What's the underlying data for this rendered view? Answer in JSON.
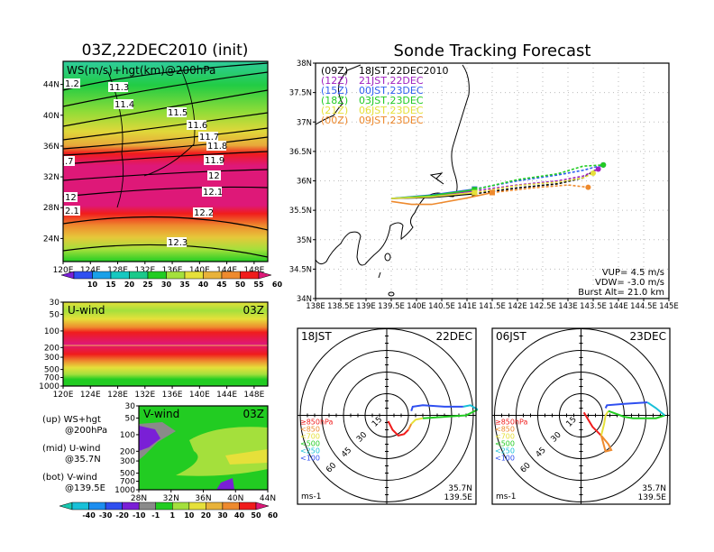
{
  "chart_data": [
    {
      "type": "heatmap",
      "id": "ws-map",
      "title": "03Z,22DEC2010 (init)",
      "label": "WS(m/s)+hgt(km)@200hPa",
      "x_ticks": [
        "120E",
        "124E",
        "128E",
        "132E",
        "136E",
        "140E",
        "144E",
        "148E"
      ],
      "y_ticks": [
        "24N",
        "28N",
        "32N",
        "36N",
        "40N",
        "44N"
      ],
      "xlim": [
        120,
        150
      ],
      "ylim": [
        21,
        47
      ],
      "contour_labels": [
        "1.2",
        "11.3",
        "11.4",
        "11.5",
        "11.6",
        "11.7",
        "11.8",
        ".7",
        "11.9",
        "12",
        "12.1",
        "12",
        "2.1",
        "12.2",
        "12.3"
      ],
      "colorbar": {
        "levels": [
          "10",
          "15",
          "20",
          "25",
          "30",
          "35",
          "40",
          "45",
          "50",
          "55",
          "60"
        ],
        "colors": [
          "#7a1fd6",
          "#2f4ff0",
          "#1aa0e8",
          "#16c8c0",
          "#1bc98a",
          "#22cc22",
          "#a4e03c",
          "#e6e03a",
          "#e8b23a",
          "#ee8a2e",
          "#f01c1c",
          "#de1878"
        ]
      }
    },
    {
      "type": "heatmap",
      "id": "u-wind",
      "label": "U-wind",
      "time": "03Z",
      "x_ticks": [
        "120E",
        "124E",
        "128E",
        "132E",
        "136E",
        "140E",
        "144E",
        "148E"
      ],
      "y_ticks": [
        "30",
        "50",
        "100",
        "200",
        "300",
        "500",
        "700",
        "1000"
      ]
    },
    {
      "type": "heatmap",
      "id": "v-wind",
      "label": "V-wind",
      "time": "03Z",
      "x_ticks": [
        "28N",
        "32N",
        "36N",
        "40N",
        "44N"
      ],
      "y_ticks": [
        "30",
        "50",
        "100",
        "200",
        "300",
        "500",
        "700",
        "1000"
      ],
      "colorbar": {
        "levels": [
          "-40",
          "-30",
          "-20",
          "-10",
          "-1",
          "1",
          "10",
          "20",
          "30",
          "40",
          "50",
          "60"
        ],
        "colors": [
          "#18c8b0",
          "#18c0d8",
          "#1c8ef0",
          "#2f4ff0",
          "#7a1fd6",
          "#8a8a8a",
          "#22cc22",
          "#a4e03c",
          "#e6e03a",
          "#e8b23a",
          "#ee8a2e",
          "#f01c1c",
          "#de1878"
        ]
      }
    },
    {
      "type": "line",
      "id": "sonde-track",
      "title": "Sonde Tracking Forecast",
      "x_ticks": [
        "138E",
        "138.5E",
        "139E",
        "139.5E",
        "140E",
        "140.5E",
        "141E",
        "141.5E",
        "142E",
        "142.5E",
        "143E",
        "143.5E",
        "144E",
        "144.5E",
        "145E"
      ],
      "y_ticks": [
        "34N",
        "34.5N",
        "35N",
        "35.5N",
        "36N",
        "36.5N",
        "37N",
        "37.5N",
        "38N"
      ],
      "xlim": [
        138,
        145
      ],
      "ylim": [
        34,
        38
      ],
      "series": [
        {
          "name": "(09Z) 18JST,22DEC2010",
          "z": "(09Z)",
          "jst": "18JST,22DEC2010",
          "color": "#000000",
          "lon": [
            139.5,
            140.3,
            141.15,
            142.0,
            142.8,
            143.3,
            143.7
          ],
          "lat": [
            35.7,
            35.72,
            35.78,
            35.88,
            35.95,
            36.05,
            36.27
          ]
        },
        {
          "name": "(12Z) 21JST,22DEC",
          "z": "(12Z)",
          "jst": "21JST,22DEC",
          "color": "#a020c0",
          "lon": [
            139.5,
            140.3,
            141.15,
            142.0,
            142.8,
            143.3,
            143.6
          ],
          "lat": [
            35.7,
            35.74,
            35.83,
            35.93,
            36.0,
            36.08,
            36.2
          ]
        },
        {
          "name": "(15Z) 00JST,23DEC",
          "z": "(15Z)",
          "jst": "00JST,23DEC",
          "color": "#2f5ff0",
          "lon": [
            139.5,
            140.3,
            141.15,
            142.0,
            142.8,
            143.3,
            143.7
          ],
          "lat": [
            35.7,
            35.76,
            35.86,
            36.0,
            36.1,
            36.18,
            36.27
          ]
        },
        {
          "name": "(18Z) 03JST,23DEC",
          "z": "(18Z)",
          "jst": "03JST,23DEC",
          "color": "#22cc22",
          "lon": [
            139.5,
            140.3,
            141.15,
            142.0,
            142.8,
            143.3,
            143.7
          ],
          "lat": [
            35.7,
            35.75,
            35.85,
            36.02,
            36.12,
            36.25,
            36.27
          ]
        },
        {
          "name": "(21Z) 06JST,23DEC",
          "z": "(21Z)",
          "jst": "06JST,23DEC",
          "color": "#e6e03a",
          "lon": [
            139.5,
            140.3,
            141.15,
            142.0,
            142.8,
            143.3,
            143.5
          ],
          "lat": [
            35.7,
            35.73,
            35.8,
            35.92,
            35.98,
            36.05,
            36.13
          ]
        },
        {
          "name": "(00Z) 09JST,23DEC",
          "z": "(00Z)",
          "jst": "09JST,23DEC",
          "color": "#ee8a2e",
          "lon": [
            139.5,
            139.9,
            140.3,
            140.95,
            141.5,
            142.3,
            143.0,
            143.4
          ],
          "lat": [
            35.65,
            35.6,
            35.6,
            35.7,
            35.8,
            35.88,
            35.93,
            35.89
          ]
        }
      ],
      "params": {
        "vup": "VUP= 4.5 m/s",
        "vdw": "VDW= -3.0 m/s",
        "burst": "Burst Alt= 21.0 km"
      }
    },
    {
      "type": "line",
      "id": "hodograph-1",
      "time": "18JST",
      "date": "22DEC",
      "unit": "ms-1",
      "lat": "35.7N",
      "lon": "139.5E",
      "rings": [
        "15",
        "30",
        "45",
        "60"
      ],
      "legend": [
        "≥850hPa",
        "<850",
        "<700",
        "<500",
        "<250",
        "<100"
      ],
      "legend_colors": [
        "#f01c1c",
        "#ee8a2e",
        "#e6e03a",
        "#22cc22",
        "#18c0d8",
        "#2f4ff0"
      ],
      "segments": [
        {
          "color": "#f01c1c",
          "u": [
            1,
            4,
            8,
            12,
            15
          ],
          "v": [
            -4,
            -10,
            -14,
            -13,
            -10
          ]
        },
        {
          "color": "#ee8a2e",
          "u": [
            15,
            16,
            17
          ],
          "v": [
            -10,
            -8,
            -6
          ]
        },
        {
          "color": "#e6e03a",
          "u": [
            17,
            20,
            25
          ],
          "v": [
            -6,
            -3,
            -2
          ]
        },
        {
          "color": "#22cc22",
          "u": [
            25,
            40,
            55,
            63
          ],
          "v": [
            -2,
            -1,
            0,
            4
          ]
        },
        {
          "color": "#18c0d8",
          "u": [
            63,
            58,
            53
          ],
          "v": [
            4,
            7,
            6
          ]
        },
        {
          "color": "#2f4ff0",
          "u": [
            53,
            40,
            25,
            18,
            17
          ],
          "v": [
            6,
            6,
            7,
            6,
            3
          ]
        }
      ]
    },
    {
      "type": "line",
      "id": "hodograph-2",
      "time": "06JST",
      "date": "23DEC",
      "unit": "ms-1",
      "lat": "35.7N",
      "lon": "139.5E",
      "rings": [
        "15",
        "30",
        "45",
        "60"
      ],
      "legend": [
        "≥850hPa",
        "<850",
        "<700",
        "<500",
        "<250",
        "<100"
      ],
      "legend_colors": [
        "#f01c1c",
        "#ee8a2e",
        "#e6e03a",
        "#22cc22",
        "#18c0d8",
        "#2f4ff0"
      ],
      "segments": [
        {
          "color": "#f01c1c",
          "u": [
            2,
            8,
            14
          ],
          "v": [
            2,
            -8,
            -14
          ]
        },
        {
          "color": "#ee8a2e",
          "u": [
            14,
            19,
            21,
            17,
            14
          ],
          "v": [
            -14,
            -20,
            -24,
            -25,
            -14
          ]
        },
        {
          "color": "#e6e03a",
          "u": [
            14,
            16,
            17,
            19
          ],
          "v": [
            -14,
            -6,
            0,
            3
          ]
        },
        {
          "color": "#22cc22",
          "u": [
            19,
            30,
            36,
            52,
            58
          ],
          "v": [
            3,
            -1,
            -2,
            -2,
            0
          ]
        },
        {
          "color": "#18c0d8",
          "u": [
            58,
            52,
            46
          ],
          "v": [
            0,
            5,
            9
          ]
        },
        {
          "color": "#2f4ff0",
          "u": [
            46,
            30,
            18,
            17
          ],
          "v": [
            9,
            8,
            7,
            5
          ]
        }
      ]
    }
  ],
  "side_notes": [
    {
      "line1": "(up) WS+hgt",
      "line2": "@200hPa"
    },
    {
      "line1": "(mid) U-wind",
      "line2": "@35.7N"
    },
    {
      "line1": "(bot) V-wind",
      "line2": "@139.5E"
    }
  ]
}
